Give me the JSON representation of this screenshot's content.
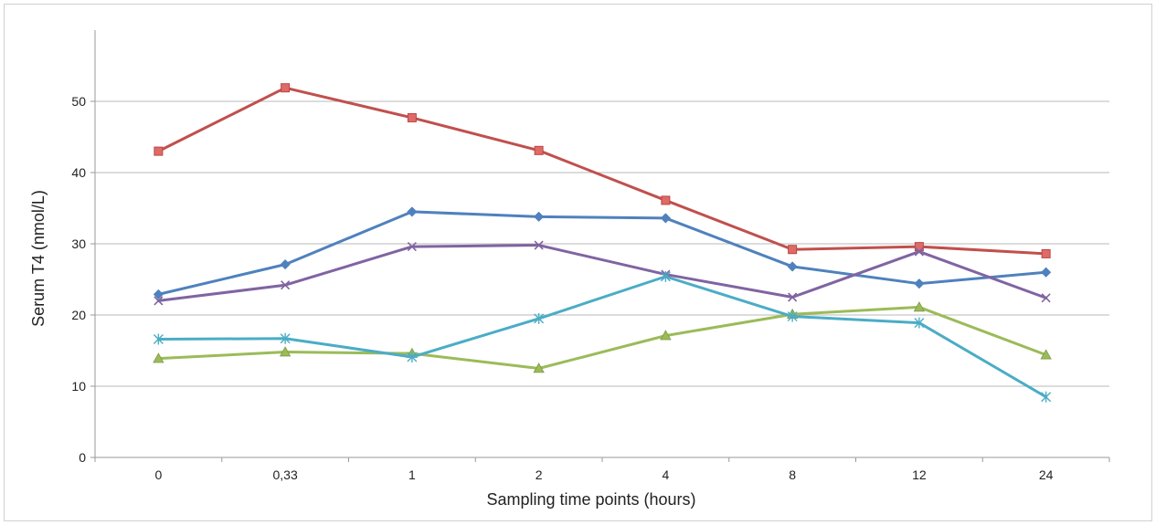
{
  "chart_data": {
    "type": "line",
    "xlabel": "Sampling time points (hours)",
    "ylabel": "Serum T4 (nmol/L)",
    "categories": [
      "0",
      "0,33",
      "1",
      "2",
      "4",
      "8",
      "12",
      "24"
    ],
    "ylim": [
      0,
      60
    ],
    "yticks": [
      0,
      10,
      20,
      30,
      40,
      50
    ],
    "grid": "horizontal",
    "legend": "none",
    "series": [
      {
        "color": "#4f81bd",
        "marker": "diamond",
        "values": [
          22.9,
          27.1,
          34.5,
          33.8,
          33.6,
          26.8,
          24.4,
          26.0
        ]
      },
      {
        "color": "#c0504d",
        "marker": "square",
        "values": [
          43.0,
          51.9,
          47.7,
          43.1,
          36.1,
          29.2,
          29.6,
          28.6
        ]
      },
      {
        "color": "#9bbb59",
        "marker": "triangle",
        "values": [
          13.9,
          14.8,
          14.6,
          12.5,
          17.1,
          20.1,
          21.1,
          14.4
        ]
      },
      {
        "color": "#8064a2",
        "marker": "x",
        "values": [
          22.0,
          24.2,
          29.6,
          29.8,
          25.7,
          22.5,
          28.9,
          22.4
        ]
      },
      {
        "color": "#4bacc6",
        "marker": "star",
        "values": [
          16.6,
          16.7,
          14.1,
          19.5,
          25.4,
          19.8,
          18.9,
          8.5
        ]
      }
    ]
  }
}
